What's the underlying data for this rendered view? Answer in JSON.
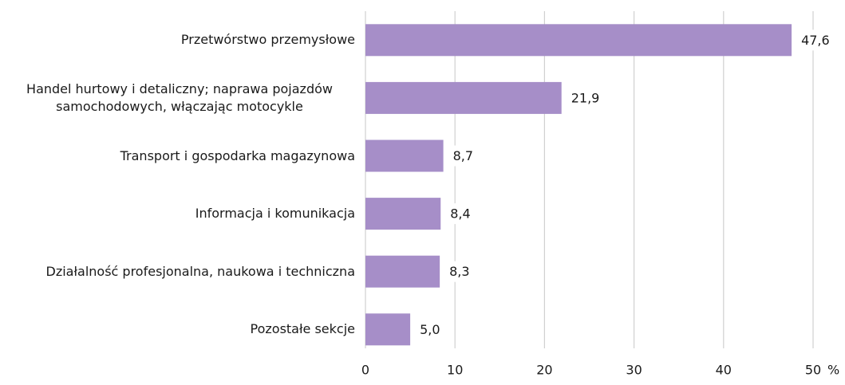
{
  "chart_data": {
    "type": "bar",
    "orientation": "horizontal",
    "categories": [
      "Przetwórstwo przemysłowe",
      "Handel hurtowy i detaliczny; naprawa pojazdów samochodowych, włączając motocykle",
      "Transport i gospodarka magazynowa",
      "Informacja i komunikacja",
      "Działalność profesjonalna, naukowa i techniczna",
      "Pozostałe sekcje"
    ],
    "values": [
      47.6,
      21.9,
      8.7,
      8.4,
      8.3,
      5.0
    ],
    "value_labels": [
      "47,6",
      "21,9",
      "8,7",
      "8,4",
      "8,3",
      "5,0"
    ],
    "color": "#a68ec8",
    "xlim": [
      0,
      50
    ],
    "xticks": [
      0,
      10,
      20,
      30,
      40,
      50
    ],
    "x_unit": "%",
    "grid": true
  }
}
